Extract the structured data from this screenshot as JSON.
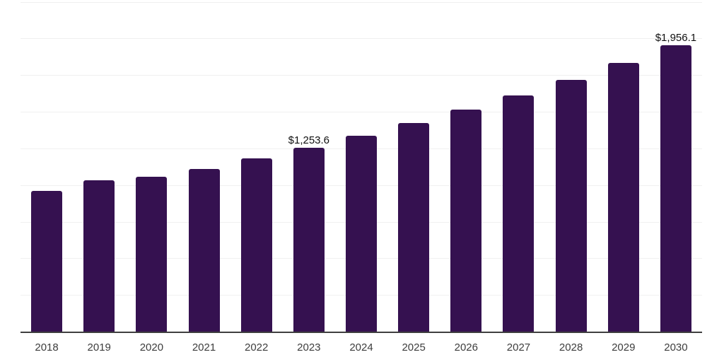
{
  "chart_data": {
    "type": "bar",
    "title": "",
    "xlabel": "",
    "ylabel": "",
    "categories": [
      "2018",
      "2019",
      "2020",
      "2021",
      "2022",
      "2023",
      "2024",
      "2025",
      "2026",
      "2027",
      "2028",
      "2029",
      "2030"
    ],
    "values": [
      959,
      1031,
      1055,
      1108,
      1180,
      1253.6,
      1334,
      1425,
      1517,
      1613,
      1719,
      1834,
      1956.1
    ],
    "data_labels": {
      "2023": "$1,253.6",
      "2030": "$1,956.1"
    },
    "ylim": [
      0,
      2250
    ],
    "gridline_step": 250,
    "grid": "horizontal-only",
    "legend": "none",
    "colors": {
      "bar_fill": "#351150",
      "gridline": "#f0f0f0",
      "axis_line": "#3f3f3f",
      "tick_label": "#3d3d3d",
      "data_label": "#101010",
      "background": "#ffffff"
    }
  }
}
